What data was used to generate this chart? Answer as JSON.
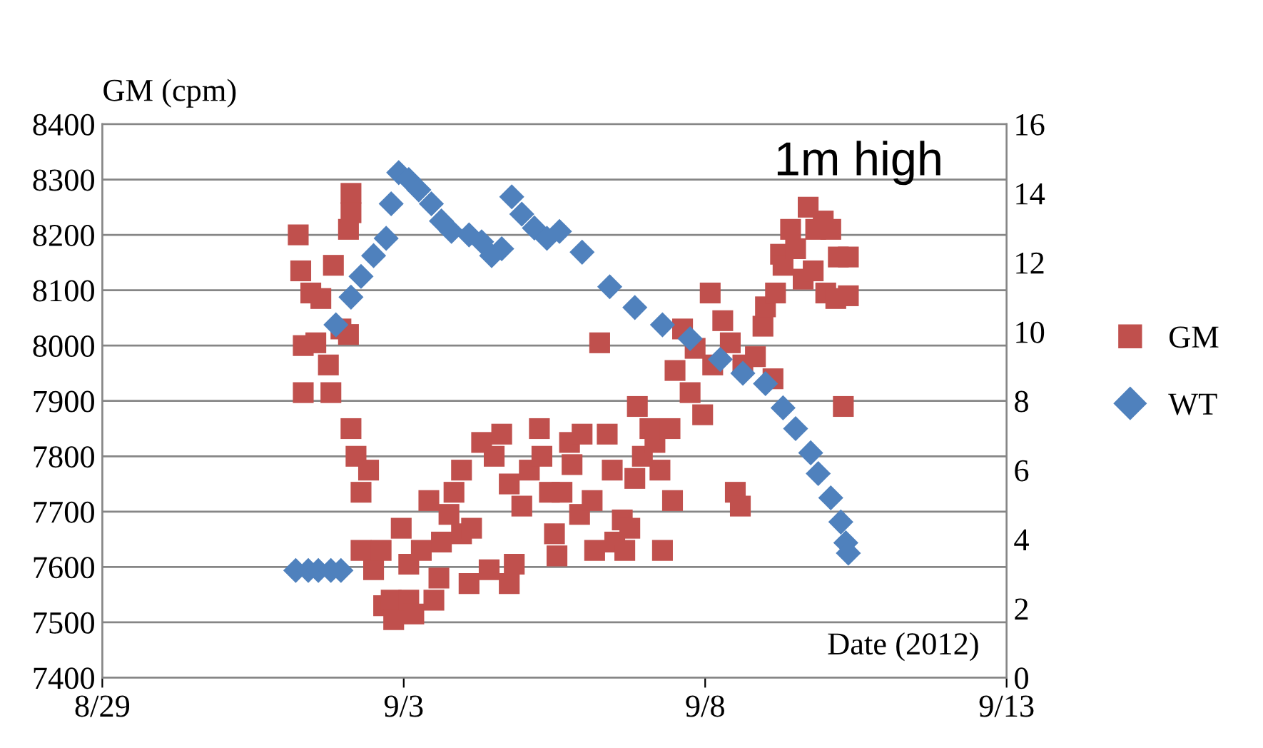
{
  "chart_data": {
    "type": "scatter",
    "ylabel": "GM (cpm)",
    "xlabel": "Date (2012)",
    "annotations": [
      "1m high"
    ],
    "xlim": [
      "2012-08-29",
      "2012-09-13"
    ],
    "xticks": [
      {
        "value": "2012-08-29",
        "label": "8/29"
      },
      {
        "value": "2012-09-03",
        "label": "9/3"
      },
      {
        "value": "2012-09-08",
        "label": "9/8"
      },
      {
        "value": "2012-09-13",
        "label": "9/13"
      }
    ],
    "ylim": [
      7400,
      8400
    ],
    "yticks": [
      7400,
      7500,
      7600,
      7700,
      7800,
      7900,
      8000,
      8100,
      8200,
      8300,
      8400
    ],
    "y2lim": [
      0,
      16
    ],
    "y2ticks": [
      0,
      2,
      4,
      6,
      8,
      10,
      12,
      14,
      16
    ],
    "grid": "y",
    "legend": "right",
    "series": [
      {
        "name": "GM",
        "color": "#c0504d",
        "marker": "square",
        "x": [
          "2012-09-01T06:00",
          "2012-09-01T07:00",
          "2012-09-01T08:00",
          "2012-09-01T08:00",
          "2012-09-01T11:00",
          "2012-09-01T13:00",
          "2012-09-01T15:00",
          "2012-09-01T18:00",
          "2012-09-01T19:00",
          "2012-09-01T20:00",
          "2012-09-02T02:00",
          "2012-09-02T03:00",
          "2012-09-02T03:00",
          "2012-09-01T23:00",
          "2012-09-02T02:00",
          "2012-09-02T03:00",
          "2012-09-02T05:00",
          "2012-09-02T07:00",
          "2012-09-02T07:00",
          "2012-09-02T10:00",
          "2012-09-02T12:00",
          "2012-09-02T15:00",
          "2012-09-02T16:00",
          "2012-09-02T19:00",
          "2012-09-02T20:00",
          "2012-09-02T23:00",
          "2012-09-03T02:00",
          "2012-09-03T02:00",
          "2012-09-03T04:00",
          "2012-09-03T07:00",
          "2012-09-03T10:00",
          "2012-09-03T12:00",
          "2012-09-03T14:00",
          "2012-09-03T15:00",
          "2012-09-03T18:00",
          "2012-09-03T20:00",
          "2012-09-03T23:00",
          "2012-09-04T02:00",
          "2012-09-03T23:00",
          "2012-09-04T03:00",
          "2012-09-04T07:00",
          "2012-09-04T10:00",
          "2012-09-04T12:00",
          "2012-09-04T15:00",
          "2012-09-04T18:00",
          "2012-09-04T20:00",
          "2012-09-04T18:00",
          "2012-09-04T23:00",
          "2012-09-05T02:00",
          "2012-09-05T06:00",
          "2012-09-05T07:00",
          "2012-09-05T10:00",
          "2012-09-05T12:00",
          "2012-09-05T13:00",
          "2012-09-05T15:00",
          "2012-09-05T18:00",
          "2012-09-05T19:00",
          "2012-09-05T22:00",
          "2012-09-05T23:00",
          "2012-09-06T03:00",
          "2012-09-06T04:00",
          "2012-09-06T06:00",
          "2012-09-06T09:00",
          "2012-09-06T11:00",
          "2012-09-06T12:00",
          "2012-09-06T15:00",
          "2012-09-06T16:00",
          "2012-09-06T18:00",
          "2012-09-06T20:00",
          "2012-09-06T21:00",
          "2012-09-06T23:00",
          "2012-09-07T02:00",
          "2012-09-07T04:00",
          "2012-09-07T06:00",
          "2012-09-07T07:00",
          "2012-09-07T10:00",
          "2012-09-07T11:00",
          "2012-09-07T12:00",
          "2012-09-07T15:00",
          "2012-09-07T18:00",
          "2012-09-07T20:00",
          "2012-09-08T02:00",
          "2012-09-07T23:00",
          "2012-09-08T03:00",
          "2012-09-08T07:00",
          "2012-09-08T10:00",
          "2012-09-08T12:00",
          "2012-09-08T14:00",
          "2012-09-08T15:00",
          "2012-09-08T20:00",
          "2012-09-08T23:00",
          "2012-09-09T00:00",
          "2012-09-09T03:00",
          "2012-09-09T04:00",
          "2012-09-09T06:00",
          "2012-09-09T07:00",
          "2012-09-09T10:00",
          "2012-09-09T12:00",
          "2012-09-09T15:00",
          "2012-09-09T17:00",
          "2012-09-09T19:00",
          "2012-09-09T20:00",
          "2012-09-09T23:00",
          "2012-09-10T00:00",
          "2012-09-10T02:00",
          "2012-09-10T04:00",
          "2012-09-10T05:00",
          "2012-09-10T07:00",
          "2012-09-10T09:00",
          "2012-09-10T09:00"
        ],
        "values": [
          8200,
          8135,
          8000,
          7915,
          8095,
          8005,
          8085,
          7965,
          7915,
          8145,
          8210,
          8275,
          8240,
          8030,
          8020,
          7850,
          7800,
          7735,
          7630,
          7775,
          7595,
          7630,
          7530,
          7540,
          7505,
          7670,
          7605,
          7540,
          7515,
          7630,
          7720,
          7540,
          7580,
          7645,
          7695,
          7735,
          7660,
          7570,
          7775,
          7670,
          7825,
          7595,
          7800,
          7840,
          7750,
          7605,
          7570,
          7710,
          7775,
          7850,
          7800,
          7735,
          7660,
          7620,
          7735,
          7825,
          7785,
          7695,
          7840,
          7720,
          7630,
          8005,
          7840,
          7775,
          7645,
          7685,
          7630,
          7670,
          7760,
          7890,
          7800,
          7850,
          7825,
          7775,
          7630,
          7850,
          7720,
          7955,
          8030,
          7915,
          7995,
          8095,
          7875,
          7965,
          8045,
          8005,
          7735,
          7710,
          7965,
          7980,
          8035,
          8070,
          7940,
          8095,
          8165,
          8145,
          8210,
          8175,
          8120,
          8250,
          8135,
          8210,
          8225,
          8095,
          8210,
          8085,
          8160,
          7890,
          8160,
          8090
        ]
      },
      {
        "name": "WT",
        "color": "#4f81bd",
        "marker": "diamond",
        "axis": "y2",
        "x": [
          "2012-09-01T05:00",
          "2012-09-01T10:00",
          "2012-09-01T14:00",
          "2012-09-01T19:00",
          "2012-09-01T23:00",
          "2012-09-01T21:00",
          "2012-09-02T03:00",
          "2012-09-02T07:00",
          "2012-09-02T12:00",
          "2012-09-02T17:00",
          "2012-09-02T19:00",
          "2012-09-02T22:00",
          "2012-09-03T02:00",
          "2012-09-03T06:00",
          "2012-09-03T11:00",
          "2012-09-03T15:00",
          "2012-09-03T19:00",
          "2012-09-04T02:00",
          "2012-09-04T07:00",
          "2012-09-04T11:00",
          "2012-09-04T15:00",
          "2012-09-04T19:00",
          "2012-09-04T23:00",
          "2012-09-05T04:00",
          "2012-09-05T09:00",
          "2012-09-05T14:00",
          "2012-09-05T23:00",
          "2012-09-06T10:00",
          "2012-09-06T20:00",
          "2012-09-07T07:00",
          "2012-09-07T18:00",
          "2012-09-08T06:00",
          "2012-09-08T15:00",
          "2012-09-09T00:00",
          "2012-09-09T07:00",
          "2012-09-09T12:00",
          "2012-09-09T18:00",
          "2012-09-09T21:00",
          "2012-09-10T02:00",
          "2012-09-10T06:00",
          "2012-09-10T08:00",
          "2012-09-10T09:00"
        ],
        "values": [
          3.1,
          3.1,
          3.1,
          3.1,
          3.1,
          10.2,
          11.0,
          11.6,
          12.2,
          12.7,
          13.7,
          14.6,
          14.4,
          14.1,
          13.7,
          13.2,
          12.9,
          12.8,
          12.6,
          12.2,
          12.4,
          13.9,
          13.4,
          13.0,
          12.7,
          12.9,
          12.3,
          11.3,
          10.7,
          10.2,
          9.8,
          9.2,
          8.8,
          8.5,
          7.8,
          7.2,
          6.5,
          5.9,
          5.2,
          4.5,
          3.9,
          3.6
        ]
      }
    ]
  }
}
